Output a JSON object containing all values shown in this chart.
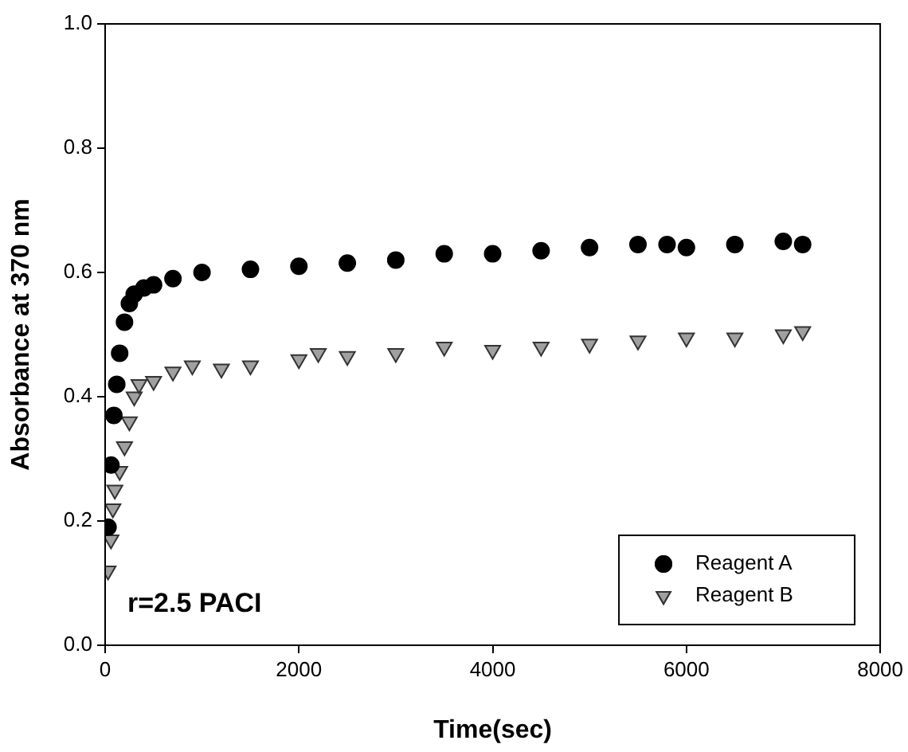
{
  "chart_data": {
    "type": "scatter",
    "xlabel": "Time(sec)",
    "ylabel": "Absorbance at 370 nm",
    "xlim": [
      0,
      8000
    ],
    "xticks": [
      0,
      2000,
      4000,
      6000,
      8000
    ],
    "ylim": [
      0,
      1
    ],
    "yticks": [
      {
        "value": 0,
        "label": "0.0"
      },
      {
        "value": 0.2,
        "label": "0.2"
      },
      {
        "value": 0.4,
        "label": "0.4"
      },
      {
        "value": 0.6,
        "label": "0.6"
      },
      {
        "value": 0.8,
        "label": "0.8"
      },
      {
        "value": 1,
        "label": "1.0"
      }
    ],
    "grid": false,
    "legend": "bottom right",
    "annotations": [
      "r=2.5 PACI"
    ],
    "series": [
      {
        "name": "Reagent A",
        "color": "#000000",
        "marker": "circle",
        "x": [
          30,
          60,
          90,
          120,
          150,
          200,
          250,
          300,
          400,
          500,
          700,
          1000,
          1500,
          2000,
          2500,
          3000,
          3500,
          4000,
          4500,
          5000,
          5500,
          5800,
          6000,
          6500,
          7000,
          7200
        ],
        "values": [
          0.19,
          0.29,
          0.37,
          0.42,
          0.47,
          0.52,
          0.55,
          0.565,
          0.575,
          0.58,
          0.59,
          0.6,
          0.605,
          0.61,
          0.615,
          0.62,
          0.63,
          0.63,
          0.635,
          0.64,
          0.645,
          0.645,
          0.64,
          0.645,
          0.65,
          0.645
        ]
      },
      {
        "name": "Reagent B",
        "color": "#a0a0a0",
        "marker": "triangle",
        "x": [
          30,
          60,
          80,
          100,
          150,
          200,
          250,
          300,
          350,
          500,
          700,
          900,
          1200,
          1500,
          2000,
          2200,
          2500,
          3000,
          3500,
          4000,
          4500,
          5000,
          5500,
          6000,
          6500,
          7000,
          7200
        ],
        "values": [
          0.12,
          0.17,
          0.22,
          0.25,
          0.28,
          0.32,
          0.36,
          0.4,
          0.42,
          0.425,
          0.44,
          0.45,
          0.445,
          0.45,
          0.46,
          0.47,
          0.465,
          0.47,
          0.48,
          0.475,
          0.48,
          0.485,
          0.49,
          0.495,
          0.495,
          0.5,
          0.505
        ]
      }
    ]
  }
}
